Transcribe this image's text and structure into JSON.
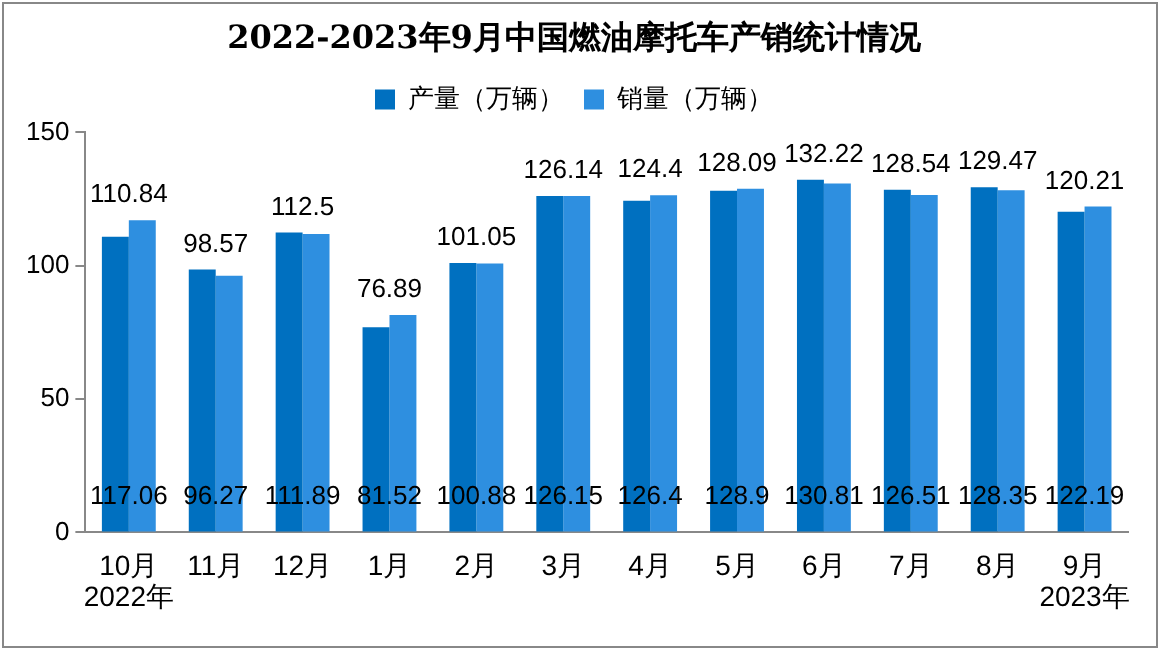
{
  "chart_data": {
    "type": "bar",
    "title": "2022-2023年9月中国燃油摩托车产销统计情况",
    "categories": [
      "10月",
      "11月",
      "12月",
      "1月",
      "2月",
      "3月",
      "4月",
      "5月",
      "6月",
      "7月",
      "8月",
      "9月"
    ],
    "series": [
      {
        "name": "产量（万辆）",
        "color": "#0070c0",
        "values": [
          110.84,
          98.57,
          112.5,
          76.89,
          101.05,
          126.14,
          124.4,
          128.09,
          132.22,
          128.54,
          129.47,
          120.21
        ]
      },
      {
        "name": "销量（万辆）",
        "color": "#2e8fe0",
        "values": [
          117.06,
          96.27,
          111.89,
          81.52,
          100.88,
          126.15,
          126.4,
          128.9,
          130.81,
          126.51,
          128.35,
          122.19
        ]
      }
    ],
    "ylim": [
      0,
      150
    ],
    "yticks": [
      0,
      50,
      100,
      150
    ],
    "grid": false,
    "legend": "top",
    "data_labels": true,
    "annotations": [
      "2022年",
      "2023年"
    ]
  }
}
